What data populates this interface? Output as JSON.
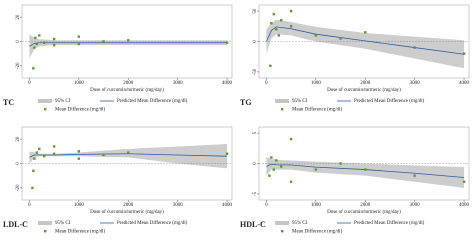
{
  "chart_data": [
    {
      "type": "scatter",
      "label": "TC",
      "xlabel": "Dose of curcumin/turmeric (mg/day)",
      "xlim": [
        -150,
        4100
      ],
      "xticks": [
        0,
        1000,
        2000,
        3000,
        4000
      ],
      "ylim": [
        -30,
        30
      ],
      "yticks": [
        -20,
        0,
        20
      ],
      "band": {
        "name": "95% CI",
        "color": "#c4c4c4",
        "x": [
          0,
          100,
          200,
          500,
          1000,
          2000,
          3000,
          4000
        ],
        "lower": [
          -14,
          -6,
          -4,
          -3,
          -3,
          -3,
          -3,
          -3
        ],
        "upper": [
          6,
          3,
          2,
          1,
          1,
          1,
          1,
          1
        ]
      },
      "series": [
        {
          "name": "Mean Difference (mg/dl)",
          "color": "#5c9a2c",
          "x": [
            80,
            100,
            120,
            150,
            200,
            300,
            500,
            500,
            1000,
            1000,
            1500,
            2000,
            4000
          ],
          "values": [
            -22,
            -5,
            3,
            -2,
            5,
            -1,
            2,
            -3,
            4,
            -2,
            0,
            1,
            -1
          ]
        },
        {
          "name": "Predicted Mean Difference (mg/dl)",
          "color": "#2f5d9a",
          "x": [
            0,
            100,
            200,
            500,
            1000,
            2000,
            3000,
            4000
          ],
          "values": [
            -4,
            -1.5,
            -1,
            -1,
            -1,
            -1,
            -1,
            -1
          ]
        }
      ]
    },
    {
      "type": "scatter",
      "label": "TG",
      "xlabel": "Dose of curcumin/turmeric (mg/day)",
      "xlim": [
        -150,
        4100
      ],
      "xticks": [
        0,
        1000,
        2000,
        3000,
        4000
      ],
      "ylim": [
        -60,
        60
      ],
      "yticks": [
        -50,
        0,
        50
      ],
      "band": {
        "name": "95% CI",
        "color": "#c4c4c4",
        "x": [
          0,
          100,
          200,
          500,
          1000,
          2000,
          3000,
          4000
        ],
        "lower": [
          -20,
          5,
          12,
          10,
          0,
          -12,
          -28,
          -44
        ],
        "upper": [
          20,
          30,
          36,
          32,
          24,
          14,
          8,
          2
        ]
      },
      "series": [
        {
          "name": "Mean Difference (mg/dl)",
          "color": "#5c9a2c",
          "x": [
            80,
            100,
            150,
            200,
            250,
            300,
            500,
            500,
            1000,
            1500,
            2000,
            3000,
            4000
          ],
          "values": [
            -40,
            30,
            45,
            20,
            10,
            35,
            25,
            50,
            10,
            5,
            15,
            -10,
            -20
          ]
        },
        {
          "name": "Predicted Mean Difference (mg/dl)",
          "color": "#2f5d9a",
          "x": [
            0,
            100,
            200,
            500,
            1000,
            2000,
            3000,
            4000
          ],
          "values": [
            0,
            18,
            24,
            21,
            12,
            1,
            -10,
            -21
          ]
        }
      ]
    },
    {
      "type": "scatter",
      "label": "LDL-C",
      "xlabel": "Dose of curcumin/turmeric (mg/day)",
      "xlim": [
        -150,
        4100
      ],
      "xticks": [
        0,
        1000,
        2000,
        3000,
        4000
      ],
      "ylim": [
        -30,
        30
      ],
      "yticks": [
        -20,
        0,
        20
      ],
      "band": {
        "name": "95% CI",
        "color": "#c4c4c4",
        "x": [
          0,
          100,
          200,
          500,
          1000,
          2000,
          3000,
          4000
        ],
        "lower": [
          0,
          5,
          6,
          6,
          6,
          5,
          0,
          -4
        ],
        "upper": [
          10,
          9,
          8,
          8,
          9,
          12,
          14,
          16
        ]
      },
      "series": [
        {
          "name": "Mean Difference (mg/dl)",
          "color": "#5c9a2c",
          "x": [
            60,
            80,
            100,
            150,
            200,
            300,
            500,
            500,
            1000,
            1000,
            1500,
            2000,
            4000
          ],
          "values": [
            -20,
            -6,
            4,
            9,
            12,
            6,
            8,
            14,
            10,
            4,
            7,
            9,
            8
          ]
        },
        {
          "name": "Predicted Mean Difference (mg/dl)",
          "color": "#2f5d9a",
          "x": [
            0,
            100,
            200,
            500,
            1000,
            2000,
            3000,
            4000
          ],
          "values": [
            5,
            7,
            7,
            7,
            7.5,
            8,
            7,
            6
          ]
        }
      ]
    },
    {
      "type": "scatter",
      "label": "HDL-C",
      "xlabel": "Dose of curcumin/turmeric (mg/day)",
      "xlim": [
        -150,
        4100
      ],
      "xticks": [
        0,
        1000,
        2000,
        3000,
        4000
      ],
      "ylim": [
        -6,
        6
      ],
      "yticks": [
        -5,
        0,
        5
      ],
      "band": {
        "name": "95% CI",
        "color": "#c4c4c4",
        "x": [
          0,
          100,
          200,
          500,
          1000,
          2000,
          3000,
          4000
        ],
        "lower": [
          -2,
          -1,
          -1,
          -1,
          -1.5,
          -2,
          -3,
          -4
        ],
        "upper": [
          1,
          0.8,
          0.6,
          0.5,
          0.3,
          0,
          -0.3,
          -0.6
        ]
      },
      "series": [
        {
          "name": "Mean Difference (mg/dl)",
          "color": "#5c9a2c",
          "x": [
            60,
            100,
            150,
            200,
            300,
            500,
            500,
            1000,
            1500,
            2000,
            3000,
            4000
          ],
          "values": [
            -2,
            1,
            -1,
            0.5,
            -0.5,
            4,
            -3,
            -1,
            0,
            -1,
            -2,
            -3
          ]
        },
        {
          "name": "Predicted Mean Difference (mg/dl)",
          "color": "#2f5d9a",
          "x": [
            0,
            100,
            200,
            500,
            1000,
            2000,
            3000,
            4000
          ],
          "values": [
            -0.5,
            -0.1,
            -0.2,
            -0.25,
            -0.6,
            -1,
            -1.6,
            -2.3
          ]
        }
      ]
    }
  ]
}
